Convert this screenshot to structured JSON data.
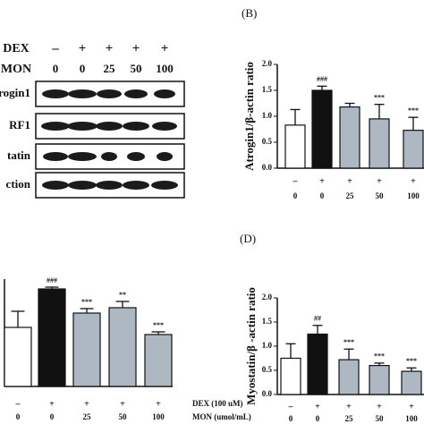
{
  "blot": {
    "dex_label": "DEX",
    "mon_label": "MON",
    "dex": [
      "–",
      "+",
      "+",
      "+",
      "+"
    ],
    "mon": [
      "0",
      "0",
      "25",
      "50",
      "100"
    ],
    "rows": [
      "rogin1",
      "RF1",
      "tatin",
      "ction"
    ]
  },
  "chart_data": [
    {
      "type": "bar",
      "panel": "(B)",
      "y_label": "Atrogin1/β-actin ratio",
      "dex": [
        "–",
        "+",
        "+",
        "+",
        "+"
      ],
      "categories": [
        "0",
        "0",
        "25",
        "50",
        "100"
      ],
      "values": [
        0.83,
        1.5,
        1.18,
        0.95,
        0.73
      ],
      "errors": [
        0.3,
        0.08,
        0.07,
        0.28,
        0.25
      ],
      "colors": [
        "#ffffff",
        "#111111",
        "#adb8c3",
        "#adb8c3",
        "#adb8c3"
      ],
      "significance": [
        null,
        "###",
        null,
        "***",
        "***"
      ],
      "ylim": [
        0,
        2
      ],
      "yticks": [
        {
          "value": 0,
          "label": "0.0"
        },
        0.5,
        {
          "value": 1,
          "label": "1.0"
        },
        1.5,
        {
          "value": 2,
          "label": "2.0"
        }
      ]
    },
    {
      "type": "bar",
      "dex": [
        "–",
        "+",
        "+",
        "+",
        "+"
      ],
      "categories": [
        "0",
        "0",
        "25",
        "50",
        "100"
      ],
      "values": [
        0.66,
        1.09,
        0.82,
        0.88,
        0.58
      ],
      "errors": [
        0.18,
        0.02,
        0.05,
        0.07,
        0.03
      ],
      "colors": [
        "#ffffff",
        "#111111",
        "#adb8c3",
        "#adb8c3",
        "#adb8c3"
      ],
      "significance": [
        null,
        "###",
        "***",
        "**",
        "***"
      ],
      "dex_label": "DEX (100 uM)",
      "mon_label": "MON (umol/mL)",
      "ylim": [
        0,
        1.2
      ]
    },
    {
      "type": "bar",
      "panel": "(D)",
      "y_label": "Myostatin/β -actin ratio",
      "dex": [
        "–",
        "+",
        "+",
        "+",
        "+"
      ],
      "categories": [
        "0",
        "0",
        "25",
        "50",
        "100"
      ],
      "values": [
        0.75,
        1.25,
        0.72,
        0.6,
        0.48
      ],
      "errors": [
        0.3,
        0.18,
        0.22,
        0.05,
        0.07
      ],
      "colors": [
        "#ffffff",
        "#111111",
        "#adb8c3",
        "#adb8c3",
        "#adb8c3"
      ],
      "significance": [
        null,
        "##",
        "***",
        "***",
        "***"
      ],
      "ylim": [
        0,
        2
      ],
      "yticks": [
        {
          "value": 0,
          "label": "0.0"
        },
        0.5,
        {
          "value": 1,
          "label": "1.0"
        },
        1.5,
        {
          "value": 2,
          "label": "2.0"
        }
      ]
    }
  ]
}
